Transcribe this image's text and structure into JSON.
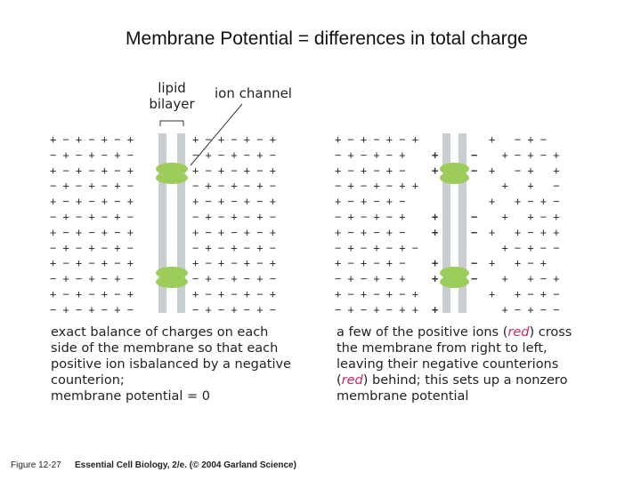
{
  "header": {
    "title": "Membrane Potential = differences in total charge"
  },
  "labels": {
    "lipid": "lipid",
    "bilayer": "bilayer",
    "ion_channel": "ion channel"
  },
  "left_panel": {
    "outside": [
      "+ − + − + − +",
      "− + − + − + −",
      "+ − + − + − +",
      "− + − + − + −",
      "+ − + − + − +",
      "− + − + − + −",
      "+ − + − + − +",
      "− + − + − + −",
      "+ − + − + − +",
      "− + − + − + −",
      "+ − + − + − +",
      "− + − + − + −"
    ],
    "inside": [
      "+ − + − + − +",
      "− + − + − + −",
      "+ − + − + − +",
      "− + − + − + −",
      "+ − + − + − +",
      "− + − + − + −",
      "+ − + − + − +",
      "− + − + − + −",
      "+ − + − + − +",
      "− + − + − + −",
      "+ − + − + − +",
      "− + − + − + −"
    ],
    "caption": [
      "exact balance of charges on each",
      "side of the membrane so that each",
      "positive ion isbalanced by a negative",
      "counterion;",
      "membrane potential = 0"
    ]
  },
  "right_panel": {
    "outside": [
      "+ − + − + − +",
      "− + − + − +",
      "+ − + − + −",
      "− + − + − + +",
      "+ − + − + −",
      "− + − + − +",
      "+ − + − + −",
      "− + − + − + −",
      "+ − + − + −",
      "− + − + − +",
      "+ − + − + − +",
      "− + − + − + +"
    ],
    "inside": [
      "+   − + −",
      "  + − + − +",
      "+   − +   +",
      "  +   +   −",
      "+   + − + −",
      "  +   + − +",
      "+   + − + +",
      "  + − + − −",
      "+   + − +",
      "  +   + − +",
      "+   + − + −",
      "  + − + − −"
    ],
    "red_plus": [
      "+",
      "+",
      "+",
      "+",
      "+",
      "+",
      "+"
    ],
    "red_minus": [
      "−",
      "−",
      "−",
      "−",
      "−",
      "−"
    ],
    "caption": [
      [
        "a few of the positive ions (",
        "red",
        ") cross"
      ],
      [
        "the membrane from right to left,"
      ],
      [
        "leaving their negative counterions"
      ],
      [
        "(",
        "red",
        ") behind; this sets up a nonzero"
      ],
      [
        "membrane potential"
      ]
    ]
  },
  "footer": {
    "figure": "Figure 12-27",
    "source": "Essential Cell Biology, 2/e. (© 2004 Garland Science)"
  }
}
